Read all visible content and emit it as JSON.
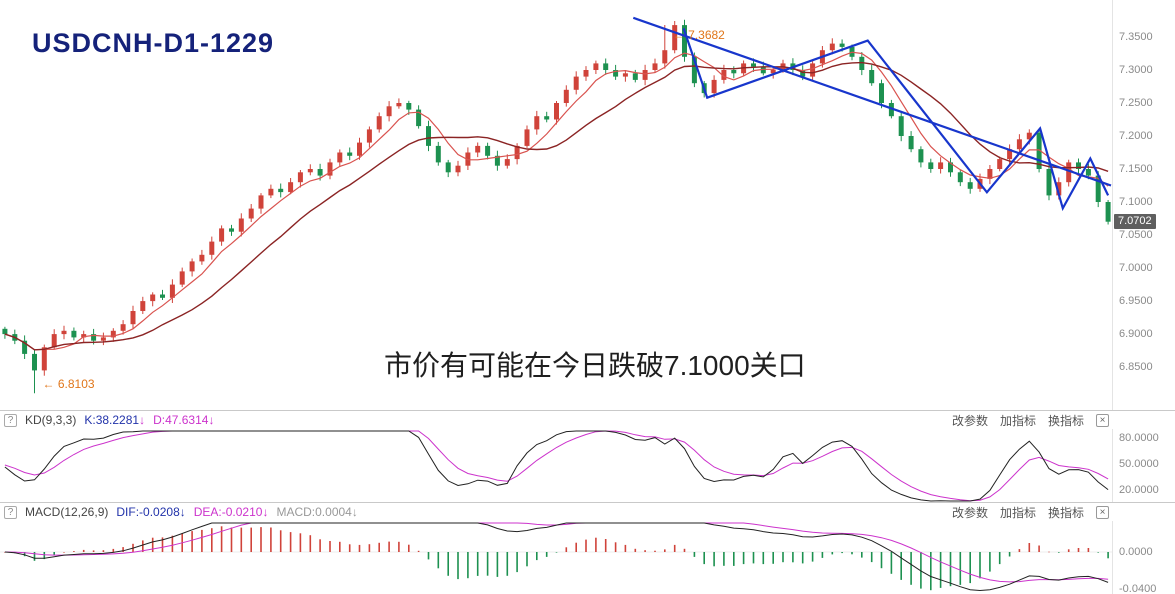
{
  "main_chart": {
    "title": "USDCNH-D1-1229",
    "note": "市价有可能在今日跌破7.1000关口",
    "annotation_high_arrow": "←",
    "annotation_high": "7.3682",
    "annotation_low_arrow": "←",
    "annotation_low": "6.8103",
    "current_price": "7.0702",
    "axis_labels": [
      "7.3500",
      "7.3000",
      "7.2500",
      "7.2000",
      "7.1500",
      "7.1000",
      "7.0500",
      "7.0000",
      "6.9500",
      "6.9000",
      "6.8500"
    ],
    "colors": {
      "up": "#d0433a",
      "down": "#1d9150",
      "ma_fast": "#d9534f",
      "ma_slow": "#8b2424",
      "trend": "#1836cc",
      "annotation": "#e0761a",
      "badge_bg": "#5f5f5f"
    }
  },
  "chart_data": {
    "type": "candlestick",
    "symbol": "USDCNH",
    "interval": "D1",
    "ylim": [
      6.785,
      7.406
    ],
    "closes": [
      6.9,
      6.89,
      6.87,
      6.845,
      6.88,
      6.9,
      6.905,
      6.895,
      6.9,
      6.89,
      6.895,
      6.905,
      6.915,
      6.935,
      6.95,
      6.96,
      6.955,
      6.975,
      6.995,
      7.01,
      7.02,
      7.04,
      7.06,
      7.055,
      7.075,
      7.09,
      7.11,
      7.12,
      7.115,
      7.13,
      7.145,
      7.15,
      7.14,
      7.16,
      7.175,
      7.17,
      7.19,
      7.21,
      7.23,
      7.245,
      7.25,
      7.24,
      7.215,
      7.185,
      7.16,
      7.145,
      7.155,
      7.175,
      7.185,
      7.17,
      7.155,
      7.165,
      7.185,
      7.21,
      7.23,
      7.225,
      7.25,
      7.27,
      7.29,
      7.3,
      7.31,
      7.3,
      7.29,
      7.295,
      7.285,
      7.3,
      7.31,
      7.33,
      7.368,
      7.32,
      7.28,
      7.265,
      7.285,
      7.3,
      7.295,
      7.31,
      7.305,
      7.295,
      7.3,
      7.31,
      7.3,
      7.29,
      7.31,
      7.33,
      7.34,
      7.335,
      7.32,
      7.3,
      7.28,
      7.25,
      7.23,
      7.2,
      7.18,
      7.16,
      7.15,
      7.16,
      7.145,
      7.13,
      7.12,
      7.135,
      7.15,
      7.165,
      7.18,
      7.195,
      7.205,
      7.15,
      7.11,
      7.13,
      7.16,
      7.15,
      7.14,
      7.1,
      7.0702
    ],
    "annotated_high": {
      "index": 67,
      "price": 7.3682
    },
    "annotated_low": {
      "index": 3,
      "price": 6.8103
    },
    "trendlines": [
      {
        "points": [
          [
            63.8,
            7.379
          ],
          [
            112.3,
            7.125
          ]
        ]
      },
      {
        "points": [
          [
            68.9,
            7.363
          ],
          [
            71.3,
            7.258
          ],
          [
            87.6,
            7.3445
          ],
          [
            99.7,
            7.1147
          ],
          [
            105.1,
            7.2115
          ],
          [
            107.4,
            7.0905
          ],
          [
            110.2,
            7.166
          ],
          [
            112.0,
            7.11
          ]
        ]
      }
    ],
    "indicators": [
      "KD(9,3,3)",
      "MACD(12,26,9)"
    ]
  },
  "kd_panel": {
    "help_icon": "?",
    "name": "KD(9,3,3)",
    "k_label": "K:38.2281",
    "d_label": "D:47.6314",
    "arrow_down": "↓",
    "buttons": [
      "改参数",
      "加指标",
      "换指标"
    ],
    "close_icon": "×",
    "axis_labels": [
      "80.0000",
      "50.0000",
      "20.0000"
    ],
    "colors": {
      "k": "#222222",
      "d": "#cc33cc"
    }
  },
  "macd_panel": {
    "help_icon": "?",
    "name": "MACD(12,26,9)",
    "dif_label": "DIF:-0.0208",
    "dea_label": "DEA:-0.0210",
    "macd_label": "MACD:0.0004",
    "arrow_down": "↓",
    "buttons": [
      "改参数",
      "加指标",
      "换指标"
    ],
    "close_icon": "×",
    "axis_labels": [
      "0.0000",
      "-0.0400"
    ],
    "colors": {
      "dif": "#222222",
      "dea": "#cc33cc",
      "hist_up": "#d0433a",
      "hist_down": "#1d9150"
    }
  }
}
